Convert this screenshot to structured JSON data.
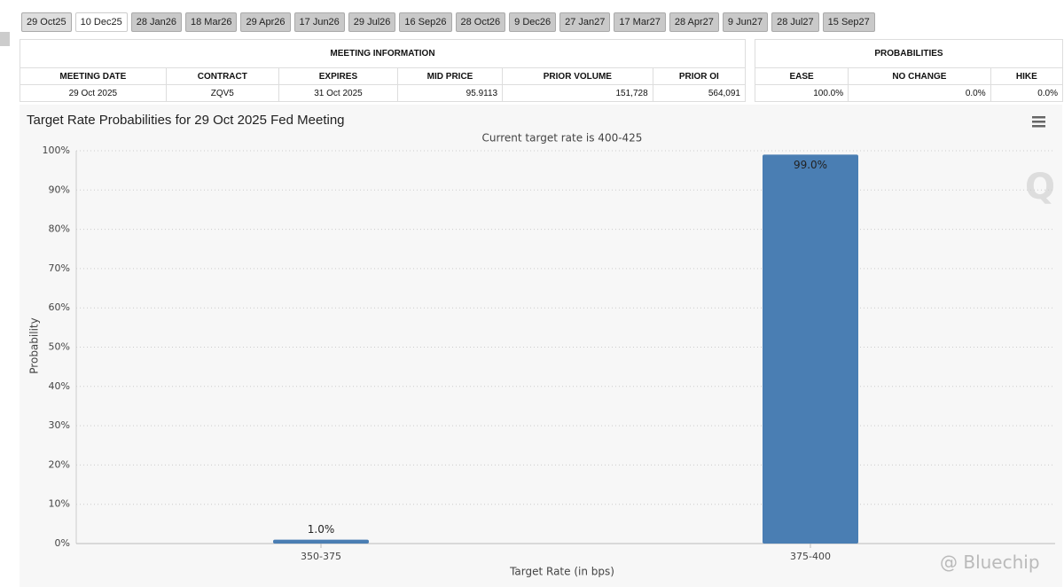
{
  "tabs": [
    "29 Oct25",
    "10 Dec25",
    "28 Jan26",
    "18 Mar26",
    "29 Apr26",
    "17 Jun26",
    "29 Jul26",
    "16 Sep26",
    "28 Oct26",
    "9 Dec26",
    "27 Jan27",
    "17 Mar27",
    "28 Apr27",
    "9 Jun27",
    "28 Jul27",
    "15 Sep27"
  ],
  "meeting_table": {
    "title": "MEETING INFORMATION",
    "headers": [
      "MEETING DATE",
      "CONTRACT",
      "EXPIRES",
      "MID PRICE",
      "PRIOR VOLUME",
      "PRIOR OI"
    ],
    "rows": [
      [
        "29 Oct 2025",
        "ZQV5",
        "31 Oct 2025",
        "95.9113",
        "151,728",
        "564,091"
      ]
    ]
  },
  "probabilities_table": {
    "title": "PROBABILITIES",
    "headers": [
      "EASE",
      "NO CHANGE",
      "HIKE"
    ],
    "rows": [
      [
        "100.0%",
        "0.0%",
        "0.0%"
      ]
    ]
  },
  "chart_data": {
    "type": "bar",
    "title": "Target Rate Probabilities for 29 Oct 2025 Fed Meeting",
    "subtitle": "Current target rate is 400-425",
    "x_label": "Target Rate (in bps)",
    "y_label": "Probability",
    "categories": [
      "350-375",
      "375-400"
    ],
    "values": [
      1.0,
      99.0
    ],
    "value_labels": [
      "1.0%",
      "99.0%"
    ],
    "color": "#4a7eb3",
    "ylim": [
      0,
      100
    ],
    "yticks": [
      {
        "value": 0,
        "label": "0%"
      },
      {
        "value": 10,
        "label": "10%"
      },
      {
        "value": 20,
        "label": "20%"
      },
      {
        "value": 30,
        "label": "30%"
      },
      {
        "value": 40,
        "label": "40%"
      },
      {
        "value": 50,
        "label": "50%"
      },
      {
        "value": 60,
        "label": "60%"
      },
      {
        "value": 70,
        "label": "70%"
      },
      {
        "value": 80,
        "label": "80%"
      },
      {
        "value": 90,
        "label": "90%"
      },
      {
        "value": 100,
        "label": "100%"
      }
    ],
    "grid": true
  },
  "watermark": "@ Bluechip"
}
